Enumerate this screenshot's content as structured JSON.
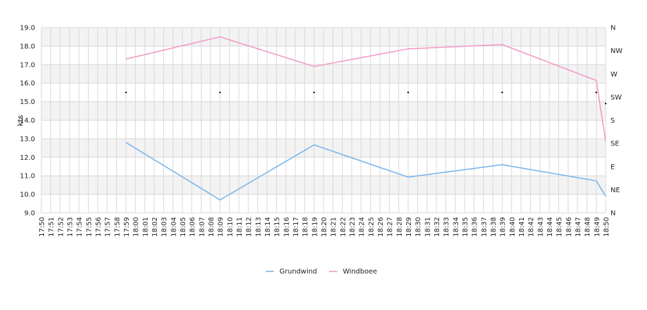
{
  "chart_data": {
    "type": "line",
    "ylabel": "kts",
    "ylim": [
      9.0,
      19.0
    ],
    "y_ticks": [
      "9.0",
      "10.0",
      "11.0",
      "12.0",
      "13.0",
      "14.0",
      "15.0",
      "16.0",
      "17.0",
      "18.0",
      "19.0"
    ],
    "y2_ticks": [
      "N",
      "NE",
      "E",
      "SE",
      "S",
      "SW",
      "W",
      "NW",
      "N"
    ],
    "x_ticks": [
      "17:50",
      "17:51",
      "17:52",
      "17:53",
      "17:54",
      "17:55",
      "17:56",
      "17:57",
      "17:58",
      "17:59",
      "18:00",
      "18:01",
      "18:02",
      "18:03",
      "18:04",
      "18:05",
      "18:06",
      "18:07",
      "18:08",
      "18:09",
      "18:10",
      "18:11",
      "18:12",
      "18:13",
      "18:14",
      "18:15",
      "18:16",
      "18:17",
      "18:18",
      "18:19",
      "18:20",
      "18:21",
      "18:22",
      "18:23",
      "18:24",
      "18:25",
      "18:26",
      "18:27",
      "18:28",
      "18:29",
      "18:30",
      "18:31",
      "18:32",
      "18:33",
      "18:34",
      "18:35",
      "18:36",
      "18:37",
      "18:38",
      "18:39",
      "18:40",
      "18:41",
      "18:42",
      "18:43",
      "18:44",
      "18:45",
      "18:46",
      "18:47",
      "18:48",
      "18:49",
      "18:50"
    ],
    "grid": true,
    "legend_position": "bottom-center",
    "series": [
      {
        "name": "Grundwind",
        "color": "#7cb5ec",
        "points": [
          {
            "x": "17:59",
            "y": 12.8
          },
          {
            "x": "18:09",
            "y": 9.7
          },
          {
            "x": "18:19",
            "y": 12.67
          },
          {
            "x": "18:29",
            "y": 10.93
          },
          {
            "x": "18:39",
            "y": 11.6
          },
          {
            "x": "18:49",
            "y": 10.73
          },
          {
            "x": "18:50",
            "y": 9.9
          }
        ]
      },
      {
        "name": "Windboee",
        "color": "#f39ac6",
        "points": [
          {
            "x": "17:59",
            "y": 17.3
          },
          {
            "x": "18:09",
            "y": 18.5
          },
          {
            "x": "18:19",
            "y": 16.9
          },
          {
            "x": "18:29",
            "y": 17.85
          },
          {
            "x": "18:39",
            "y": 18.08
          },
          {
            "x": "18:49",
            "y": 16.15
          },
          {
            "x": "18:50",
            "y": 12.85
          }
        ]
      }
    ],
    "direction_markers": {
      "times": [
        "17:59",
        "18:09",
        "18:19",
        "18:29",
        "18:39",
        "18:49",
        "18:50"
      ],
      "y": [
        15.5,
        15.5,
        15.5,
        15.5,
        15.5,
        15.5,
        14.9
      ]
    }
  }
}
